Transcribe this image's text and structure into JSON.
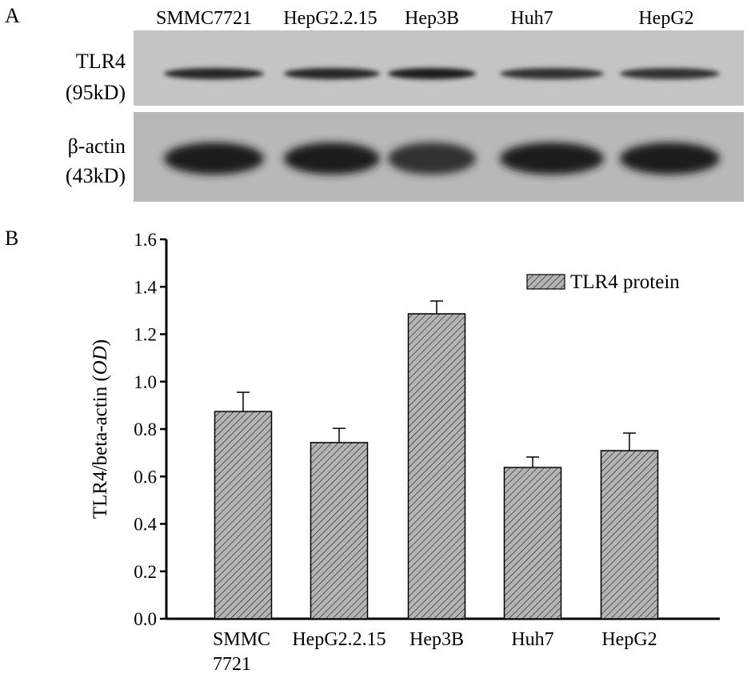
{
  "panel_a": {
    "label": "A",
    "lanes": [
      "SMMC7721",
      "HepG2.2.15",
      "Hep3B",
      "Huh7",
      "HepG2"
    ],
    "blots": [
      {
        "name_line1": "TLR4",
        "name_line2": "(95kD)",
        "band_intensity": [
          0.85,
          0.85,
          0.9,
          0.75,
          0.75
        ]
      },
      {
        "name_line1": "β-actin",
        "name_line2": "(43kD)",
        "band_intensity": [
          0.95,
          0.9,
          0.75,
          0.9,
          0.9
        ]
      }
    ]
  },
  "chart_data": {
    "panel_label": "B",
    "type": "bar",
    "categories": [
      "SMMC\n7721",
      "HepG2.2.15",
      "Hep3B",
      "Huh7",
      "HepG2"
    ],
    "series": [
      {
        "name": "TLR4 protein",
        "values": [
          0.874,
          0.743,
          1.286,
          0.638,
          0.709
        ],
        "error_plus": [
          0.081,
          0.06,
          0.054,
          0.044,
          0.074
        ]
      }
    ],
    "ylabel_prefix": "TLR4/beta-actin (",
    "ylabel_italic": "OD",
    "ylabel_suffix": ")",
    "ylim": [
      0,
      1.6
    ],
    "yticks": [
      "0.0",
      "0.2",
      "0.4",
      "0.6",
      "0.8",
      "1.0",
      "1.2",
      "1.4",
      "1.6"
    ],
    "grid": false,
    "legend": "top-right",
    "bar_fill": "#b0b0b0",
    "hatch": "diagonal"
  }
}
